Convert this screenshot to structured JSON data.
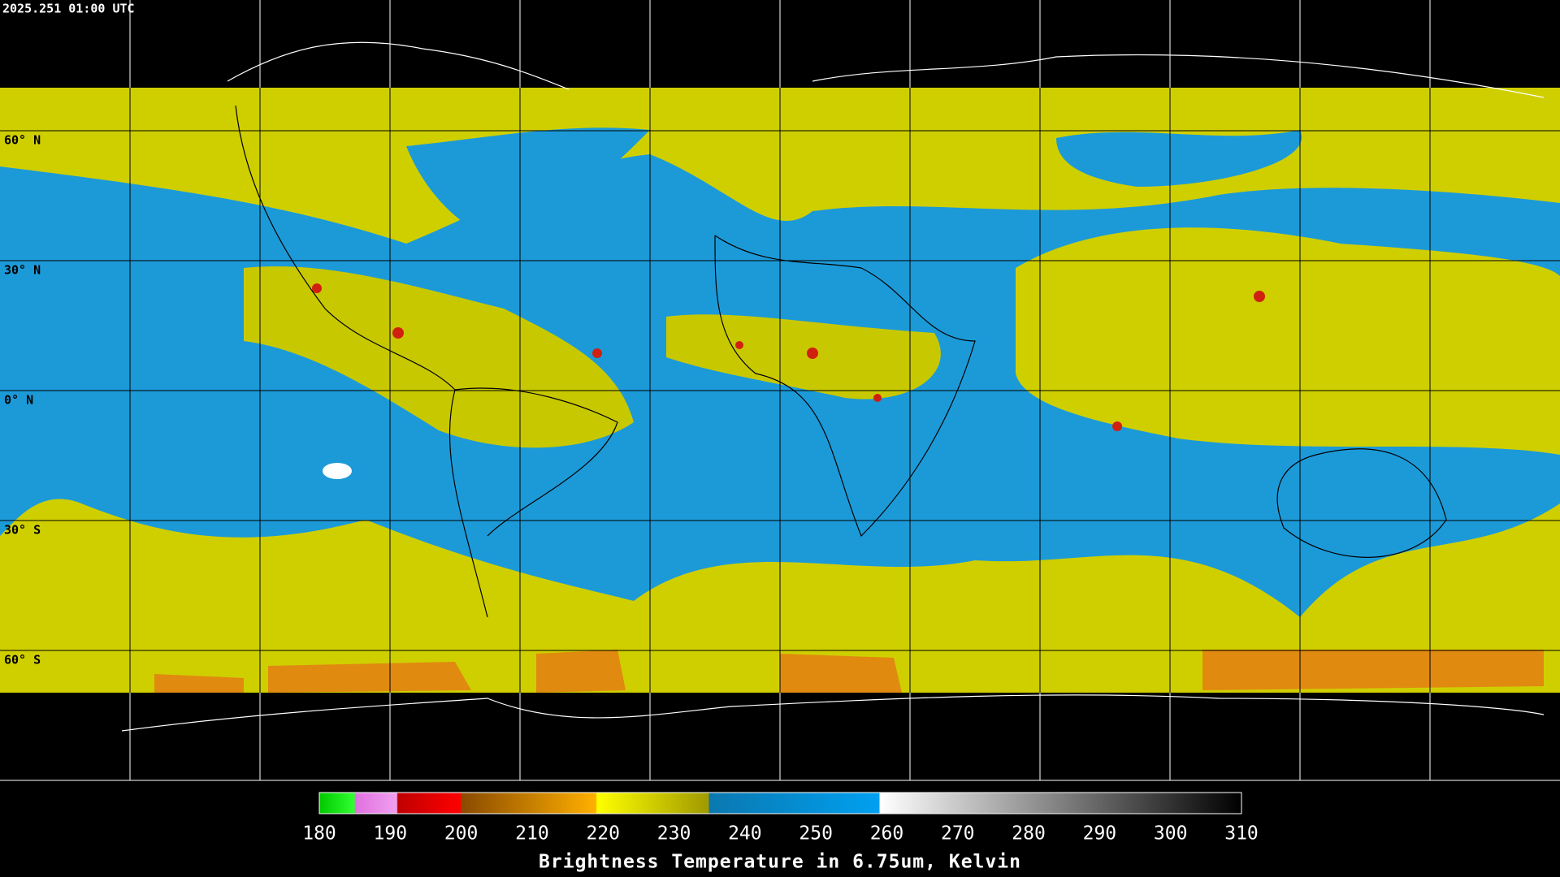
{
  "header": {
    "timestamp": "2025.251 01:00 UTC"
  },
  "map": {
    "latitude_labels": [
      "60° N",
      "30° N",
      "0° N",
      "30° S",
      "60° S"
    ]
  },
  "colorbar": {
    "title": "Brightness Temperature in 6.75um, Kelvin",
    "range": [
      180,
      310
    ],
    "ticks": [
      180,
      190,
      200,
      210,
      220,
      230,
      240,
      250,
      260,
      270,
      280,
      290,
      300,
      310
    ]
  }
}
